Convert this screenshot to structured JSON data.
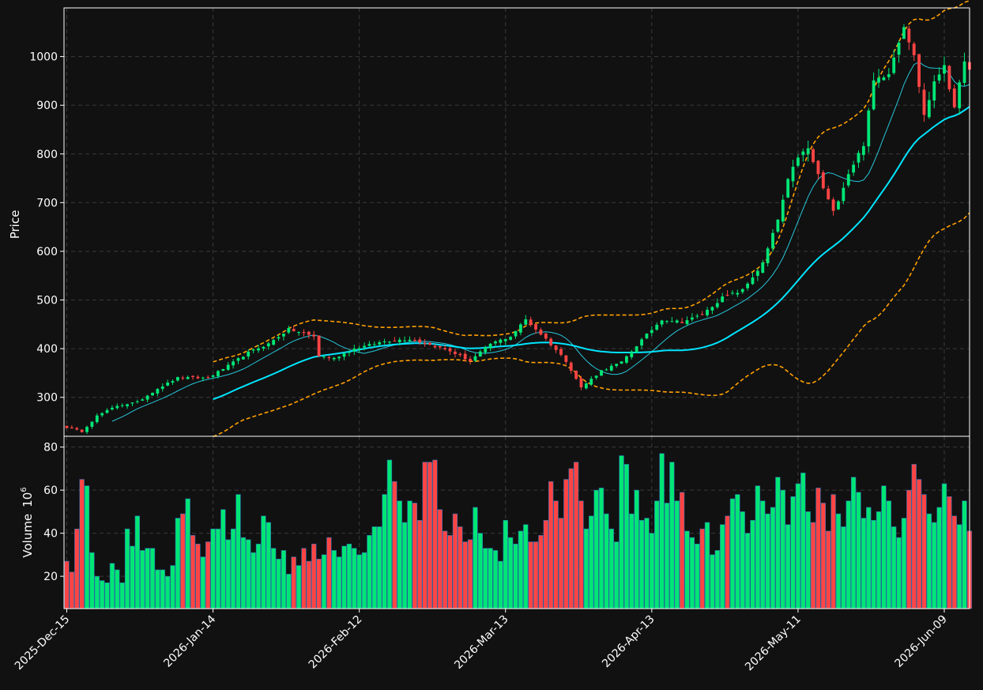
{
  "chart_data": {
    "type": "candlestick",
    "title": "",
    "colors": {
      "background": "#111111",
      "up": "#00e676",
      "down": "#ff4444",
      "ma_short": "#26c6da",
      "ma_long": "#00e5ff",
      "band": "#ffa000",
      "grid": "#3a3a3a",
      "text": "#ffffff"
    },
    "grid": true,
    "price_panel": {
      "ylabel": "Price",
      "ylim": [
        220,
        1100
      ],
      "yticks": [
        300,
        400,
        500,
        600,
        700,
        800,
        900,
        1000
      ]
    },
    "volume_panel": {
      "ylabel": "Volume",
      "ylabel_unit": "10",
      "ylabel_exp": "6",
      "ylim": [
        5,
        85
      ],
      "yticks": [
        20,
        40,
        60,
        80
      ]
    },
    "x_ticks": [
      {
        "index": 0,
        "label": "2025-Dec-15"
      },
      {
        "index": 29,
        "label": "2026-Jan-14"
      },
      {
        "index": 58,
        "label": "2026-Feb-12"
      },
      {
        "index": 87,
        "label": "2026-Mar-13"
      },
      {
        "index": 116,
        "label": "2026-Apr-13"
      },
      {
        "index": 145,
        "label": "2026-May-11"
      },
      {
        "index": 174,
        "label": "2026-Jun-09"
      }
    ],
    "n_bars": 180,
    "anchors": [
      {
        "i": 0,
        "close": 238
      },
      {
        "i": 3,
        "close": 230
      },
      {
        "i": 6,
        "close": 262
      },
      {
        "i": 10,
        "close": 283
      },
      {
        "i": 14,
        "close": 290
      },
      {
        "i": 18,
        "close": 318
      },
      {
        "i": 22,
        "close": 340
      },
      {
        "i": 28,
        "close": 340
      },
      {
        "i": 32,
        "close": 365
      },
      {
        "i": 36,
        "close": 392
      },
      {
        "i": 40,
        "close": 410
      },
      {
        "i": 44,
        "close": 440
      },
      {
        "i": 49,
        "close": 425
      },
      {
        "i": 50,
        "close": 385
      },
      {
        "i": 53,
        "close": 380
      },
      {
        "i": 57,
        "close": 400
      },
      {
        "i": 63,
        "close": 415
      },
      {
        "i": 68,
        "close": 420
      },
      {
        "i": 72,
        "close": 408
      },
      {
        "i": 76,
        "close": 395
      },
      {
        "i": 80,
        "close": 375
      },
      {
        "i": 84,
        "close": 410
      },
      {
        "i": 88,
        "close": 425
      },
      {
        "i": 91,
        "close": 460
      },
      {
        "i": 95,
        "close": 420
      },
      {
        "i": 99,
        "close": 375
      },
      {
        "i": 102,
        "close": 320
      },
      {
        "i": 106,
        "close": 355
      },
      {
        "i": 110,
        "close": 372
      },
      {
        "i": 114,
        "close": 418
      },
      {
        "i": 118,
        "close": 460
      },
      {
        "i": 122,
        "close": 455
      },
      {
        "i": 126,
        "close": 470
      },
      {
        "i": 130,
        "close": 505
      },
      {
        "i": 134,
        "close": 520
      },
      {
        "i": 138,
        "close": 575
      },
      {
        "i": 141,
        "close": 665
      },
      {
        "i": 143,
        "close": 745
      },
      {
        "i": 145,
        "close": 795
      },
      {
        "i": 147,
        "close": 810
      },
      {
        "i": 150,
        "close": 730
      },
      {
        "i": 152,
        "close": 680
      },
      {
        "i": 155,
        "close": 760
      },
      {
        "i": 158,
        "close": 820
      },
      {
        "i": 160,
        "close": 950
      },
      {
        "i": 163,
        "close": 968
      },
      {
        "i": 166,
        "close": 1065
      },
      {
        "i": 168,
        "close": 1000
      },
      {
        "i": 170,
        "close": 880
      },
      {
        "i": 172,
        "close": 945
      },
      {
        "i": 174,
        "close": 985
      },
      {
        "i": 176,
        "close": 890
      },
      {
        "i": 178,
        "close": 995
      },
      {
        "i": 179,
        "close": 970
      }
    ],
    "volumes": [
      27,
      22,
      42,
      65,
      62,
      31,
      20,
      18,
      17,
      26,
      23,
      17,
      42,
      34,
      48,
      32,
      33,
      33,
      23,
      23,
      20,
      25,
      47,
      49,
      56,
      39,
      35,
      29,
      36,
      42,
      42,
      51,
      37,
      42,
      58,
      38,
      37,
      31,
      35,
      48,
      45,
      33,
      28,
      32,
      21,
      29,
      25,
      33,
      27,
      35,
      28,
      30,
      38,
      32,
      29,
      34,
      35,
      33,
      30,
      31,
      39,
      43,
      43,
      58,
      74,
      64,
      55,
      45,
      55,
      54,
      46,
      73,
      73,
      74,
      51,
      41,
      39,
      49,
      43,
      36,
      37,
      52,
      40,
      33,
      33,
      32,
      27,
      46,
      38,
      35,
      41,
      44,
      36,
      36,
      39,
      46,
      64,
      55,
      47,
      65,
      70,
      73,
      55,
      42,
      48,
      60,
      61,
      49,
      42,
      36,
      76,
      72,
      49,
      60,
      46,
      47,
      40,
      55,
      77,
      54,
      73,
      55,
      59,
      41,
      38,
      35,
      42,
      45,
      30,
      32,
      44,
      48,
      56,
      58,
      50,
      40,
      46,
      62,
      55,
      49,
      52,
      66,
      60,
      44,
      57,
      63,
      68,
      50,
      45,
      61,
      54,
      41,
      58,
      49,
      43,
      55,
      66,
      59,
      47,
      52,
      46,
      50,
      62,
      55,
      43,
      38,
      47,
      60,
      72,
      65,
      58,
      49,
      45,
      52,
      63,
      57,
      48,
      44,
      55,
      41
    ],
    "ma_short_window": 10,
    "ma_long_window": 30,
    "band_window": 30,
    "band_k": 2
  }
}
